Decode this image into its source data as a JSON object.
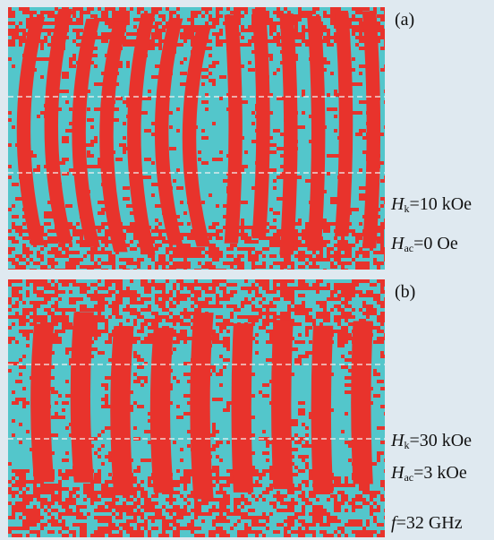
{
  "panels": [
    {
      "id": "a",
      "label": "(a)",
      "params": [
        {
          "symbol": "H",
          "sub": "k",
          "value": "=10 kOe"
        },
        {
          "symbol": "H",
          "sub": "ac",
          "value": "=0 Oe"
        }
      ],
      "stripe_count": 13,
      "stripe_style": "curved"
    },
    {
      "id": "b",
      "label": "(b)",
      "params": [
        {
          "symbol": "H",
          "sub": "k",
          "value": "=30 kOe"
        },
        {
          "symbol": "H",
          "sub": "ac",
          "value": "=3 kOe"
        },
        {
          "symbol": "f",
          "sub": "",
          "value": "=32 GHz"
        }
      ],
      "stripe_count": 9,
      "stripe_style": "straight"
    }
  ],
  "colors": {
    "domain_up": "#e8332c",
    "domain_down": "#53c6cb",
    "guide_line": "#f4f4f4"
  }
}
